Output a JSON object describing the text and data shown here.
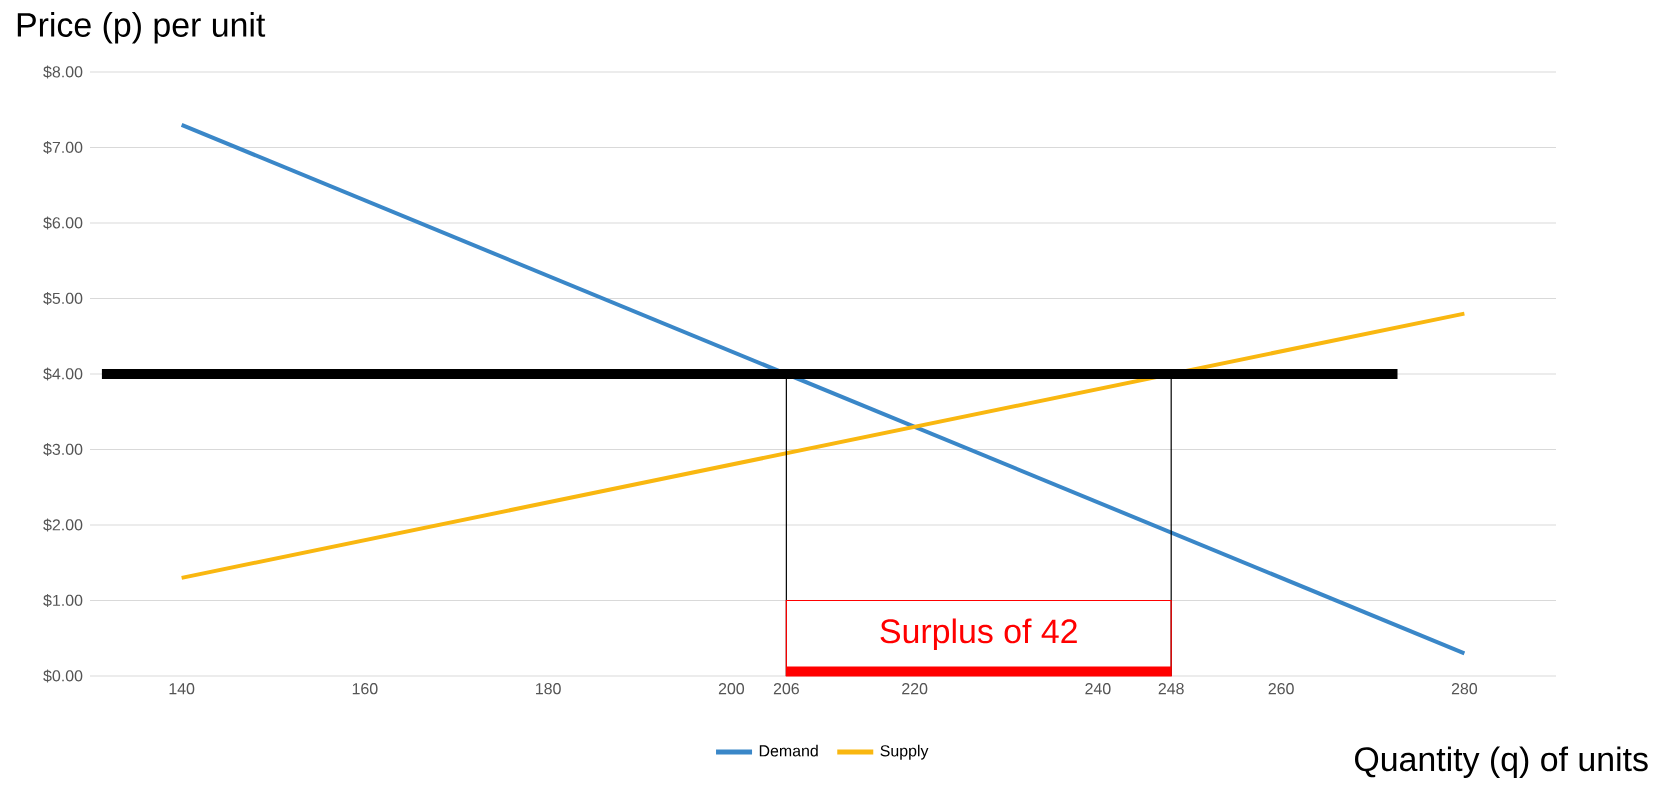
{
  "chart_data": {
    "type": "line",
    "xlabel": "Quantity (q) of units",
    "ylabel": "Price (p) per unit",
    "x": [
      140,
      280
    ],
    "series": [
      {
        "name": "Demand",
        "color": "#3a87c8",
        "values": [
          7.3,
          0.3
        ]
      },
      {
        "name": "Supply",
        "color": "#f9b710",
        "values": [
          1.3,
          4.8
        ]
      }
    ],
    "xlim": [
      130,
      290
    ],
    "ylim": [
      0,
      8
    ],
    "xticks": [
      140,
      160,
      180,
      200,
      206,
      220,
      240,
      248,
      260,
      280
    ],
    "yticks": [
      {
        "value": 0,
        "label": "$0.00"
      },
      {
        "value": 1,
        "label": "$1.00"
      },
      {
        "value": 2,
        "label": "$2.00"
      },
      {
        "value": 3,
        "label": "$3.00"
      },
      {
        "value": 4,
        "label": "$4.00"
      },
      {
        "value": 5,
        "label": "$5.00"
      },
      {
        "value": 6,
        "label": "$6.00"
      },
      {
        "value": 7,
        "label": "$7.00"
      },
      {
        "value": 8,
        "label": "$8.00"
      }
    ],
    "ref_lines": [
      {
        "axis": "y",
        "value": 4,
        "color": "#000000"
      },
      {
        "axis": "x",
        "value": 206,
        "color": "#000000"
      },
      {
        "axis": "x",
        "value": 248,
        "color": "#000000"
      }
    ],
    "annotations": [
      "Surplus of 42"
    ],
    "grid": "y",
    "legend": "bottom",
    "marker": "none",
    "line_style": "solid"
  }
}
